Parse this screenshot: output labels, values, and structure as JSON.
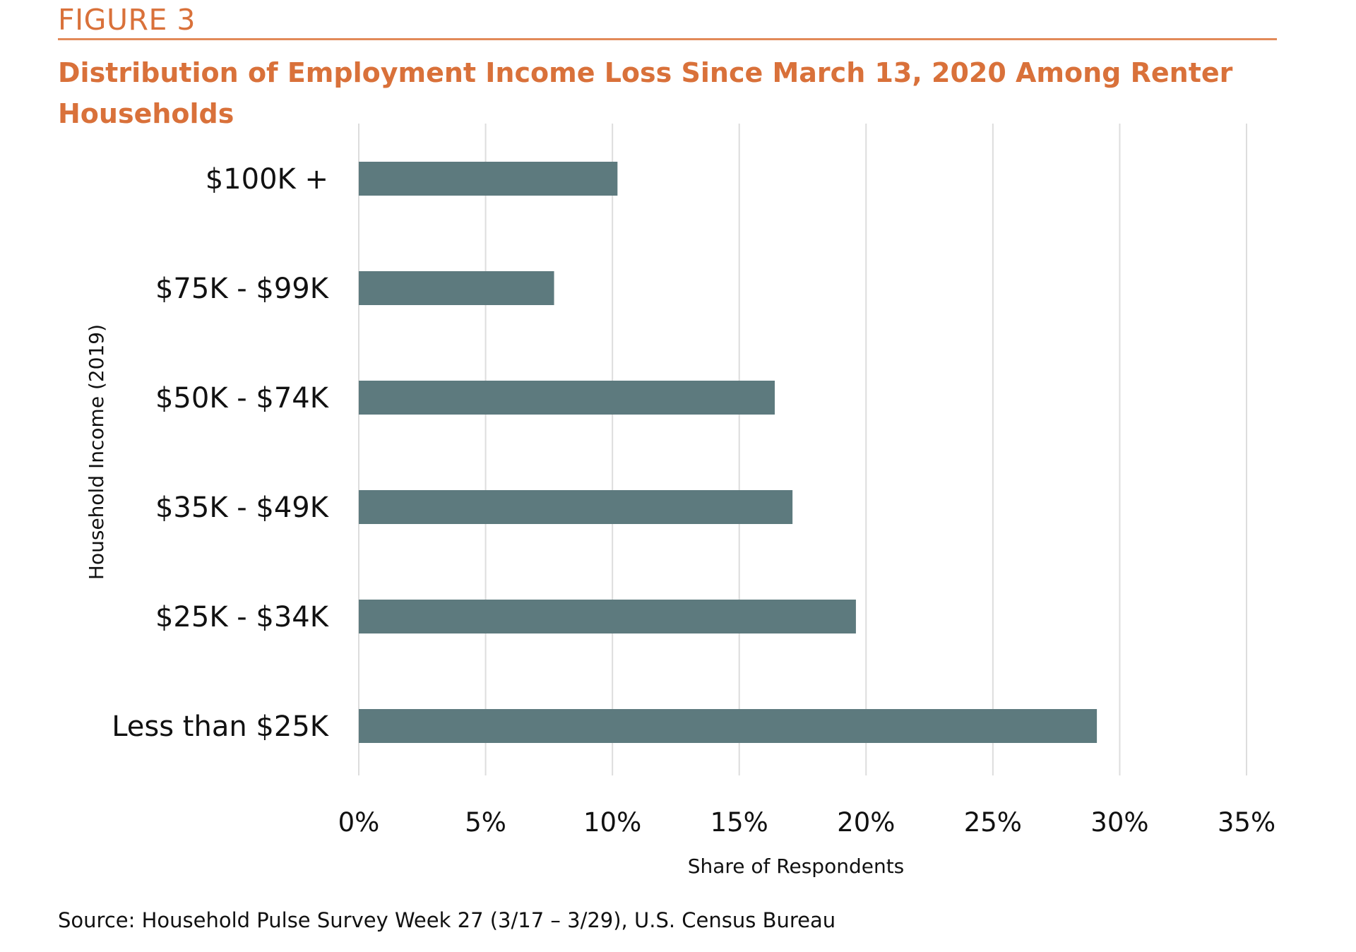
{
  "figure_label": "FIGURE 3",
  "source": "Source: Household Pulse Survey Week 27 (3/17 – 3/29), U.S. Census Bureau",
  "colors": {
    "accent": "#d9713a",
    "bar": "#5d7a7e",
    "grid": "#dddddd"
  },
  "chart_data": {
    "type": "bar",
    "orientation": "horizontal",
    "title": "Distribution of Employment Income Loss Since March 13, 2020 Among Renter Households",
    "xlabel": "Share of Respondents",
    "ylabel": "Household Income (2019)",
    "categories": [
      "$100K +",
      "$75K - $99K",
      "$50K - $74K",
      "$35K - $49K",
      "$25K - $34K",
      "Less than $25K"
    ],
    "values": [
      10.2,
      7.7,
      16.4,
      17.1,
      19.6,
      29.1
    ],
    "xlim": [
      0,
      35
    ],
    "ticks": [
      "0%",
      "5%",
      "10%",
      "15%",
      "20%",
      "25%",
      "30%",
      "35%"
    ],
    "grid": true,
    "legend": false
  }
}
